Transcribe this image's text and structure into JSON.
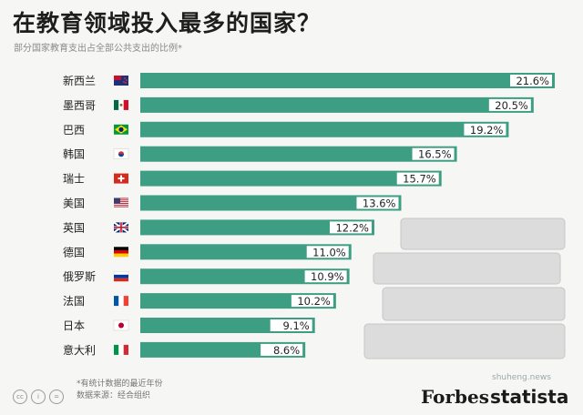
{
  "header": {
    "title": "在教育领域投入最多的国家？",
    "subtitle": "部分国家教育支出占全部公共支出的比例*"
  },
  "footer": {
    "note_line1": "*有统计数据的最近年份",
    "note_line2": "数据来源：经合组织",
    "brand_forbes": "Forbes",
    "brand_statista": "statista",
    "watermark": "shuheng.news"
  },
  "colors": {
    "bar": "#3e9e83",
    "bar_label_bg": "#ffffff",
    "books": "#dcdcdc"
  },
  "chart_data": {
    "type": "bar",
    "orientation": "horizontal",
    "title": "在教育领域投入最多的国家？",
    "subtitle": "部分国家教育支出占全部公共支出的比例*",
    "unit": "%",
    "xlim": [
      0,
      21.6
    ],
    "categories": [
      "新西兰",
      "墨西哥",
      "巴西",
      "韩国",
      "瑞士",
      "美国",
      "英国",
      "德国",
      "俄罗斯",
      "法国",
      "日本",
      "意大利"
    ],
    "values": [
      21.6,
      20.5,
      19.2,
      16.5,
      15.7,
      13.6,
      12.2,
      11.0,
      10.9,
      10.2,
      9.1,
      8.6
    ],
    "labels": [
      "21.6%",
      "20.5%",
      "19.2%",
      "16.5%",
      "15.7%",
      "13.6%",
      "12.2%",
      "11.0%",
      "10.9%",
      "10.2%",
      "9.1%",
      "8.6%"
    ],
    "flags": [
      "new-zealand-flag-icon",
      "mexico-flag-icon",
      "brazil-flag-icon",
      "south-korea-flag-icon",
      "switzerland-flag-icon",
      "usa-flag-icon",
      "uk-flag-icon",
      "germany-flag-icon",
      "russia-flag-icon",
      "france-flag-icon",
      "japan-flag-icon",
      "italy-flag-icon"
    ]
  }
}
